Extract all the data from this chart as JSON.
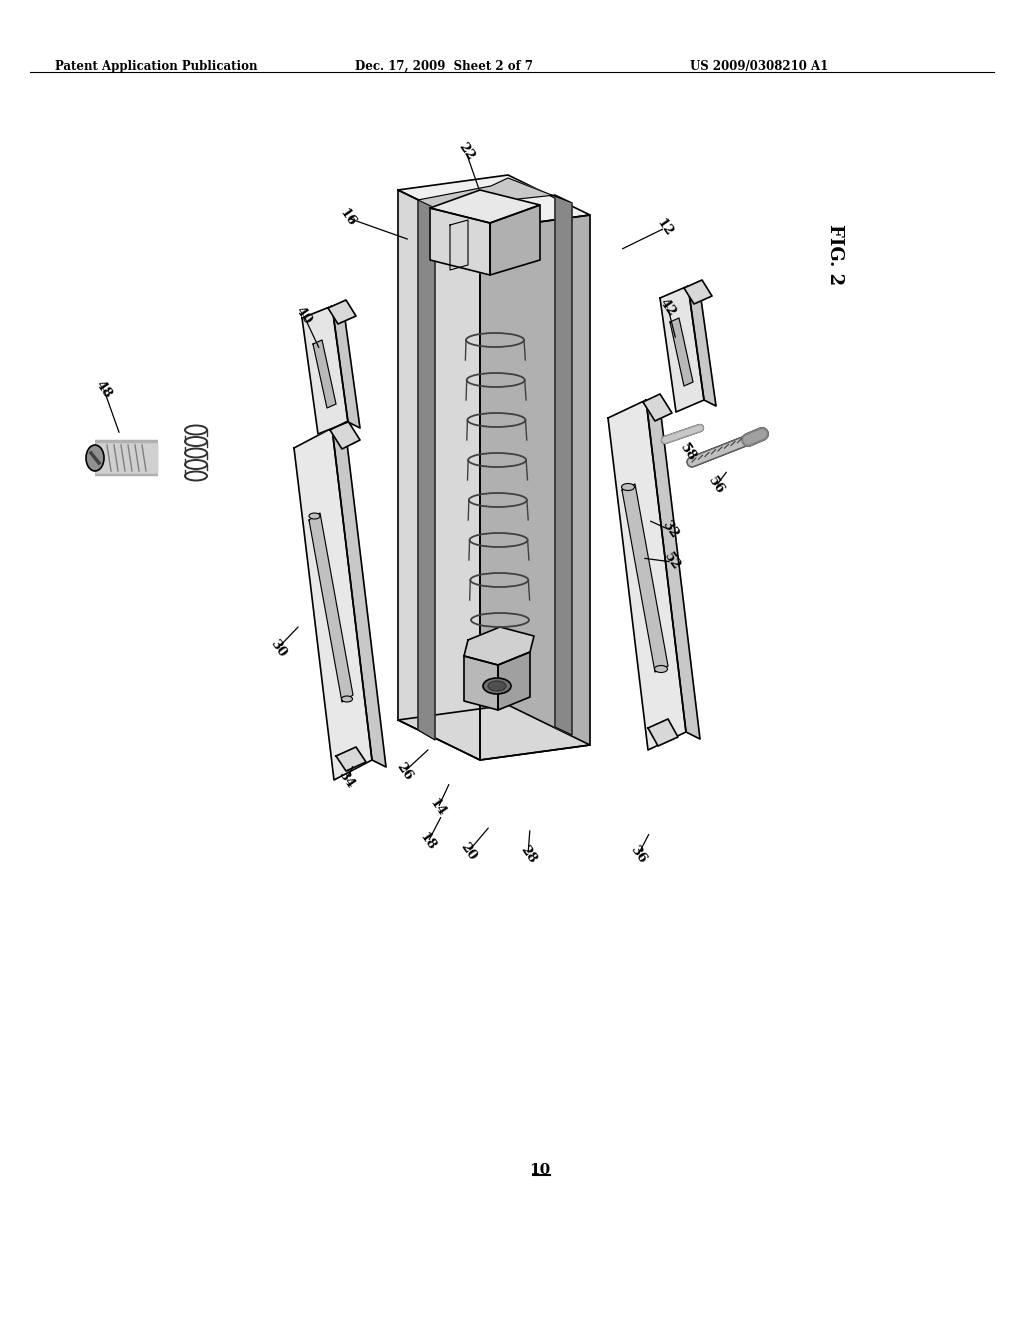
{
  "bg_color": "#ffffff",
  "header_left": "Patent Application Publication",
  "header_center": "Dec. 17, 2009  Sheet 2 of 7",
  "header_right": "US 2009/0308210 A1",
  "fig_label": "FIG. 2",
  "part_number_bottom": "10"
}
